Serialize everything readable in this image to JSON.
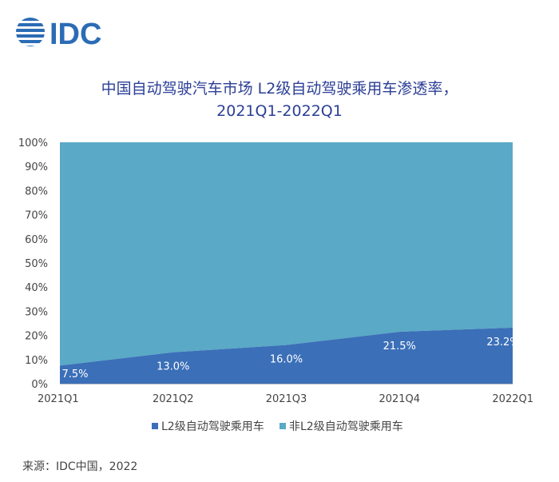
{
  "logo": {
    "text": "IDC",
    "color": "#2b6cb5"
  },
  "title": {
    "line1": "中国自动驾驶汽车市场 L2级自动驾驶乘用车渗透率，",
    "line2": "2021Q1-2022Q1"
  },
  "chart_data": {
    "type": "area",
    "categories": [
      "2021Q1",
      "2021Q2",
      "2021Q3",
      "2021Q4",
      "2022Q1"
    ],
    "series": [
      {
        "name": "L2级自动驾驶乘用车",
        "values": [
          7.5,
          13.0,
          16.0,
          21.5,
          23.2
        ],
        "color": "#3b6fb8"
      },
      {
        "name": "非L2级自动驾驶乘用车",
        "values": [
          92.5,
          87.0,
          84.0,
          78.5,
          76.8
        ],
        "color": "#5aa9c6"
      }
    ],
    "data_labels": [
      "7.5%",
      "13.0%",
      "16.0%",
      "21.5%",
      "23.2%"
    ],
    "y_ticks": [
      "0%",
      "10%",
      "20%",
      "30%",
      "40%",
      "50%",
      "60%",
      "70%",
      "80%",
      "90%",
      "100%"
    ],
    "ylim": [
      0,
      100
    ],
    "stacked": true,
    "legend_position": "bottom",
    "grid": false
  },
  "source": "来源：IDC中国，2022"
}
